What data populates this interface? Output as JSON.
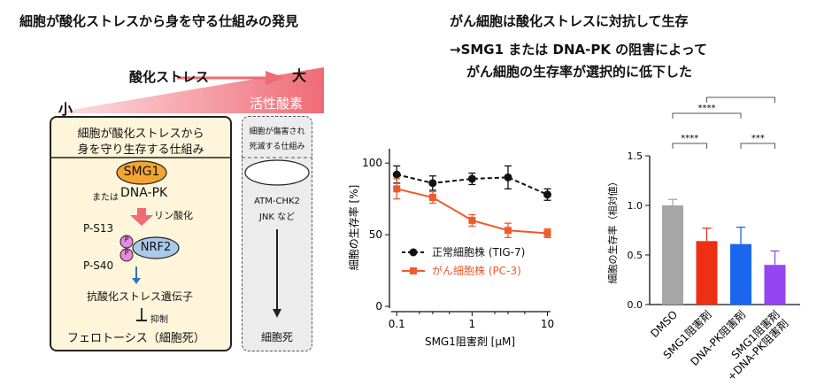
{
  "headers": {
    "left_title": "細胞が酸化ストレスから身を守る仕組みの発見",
    "right_title": "がん細胞は酸化ストレスに対抗して生存",
    "right_sub1": "→SMG1 または DNA-PK の阻害によって",
    "right_sub2": "がん細胞の生存率が選択的に低下した"
  },
  "gradient": {
    "label": "酸化ストレス",
    "small": "小",
    "large": "大",
    "ros": "活性酸素",
    "colors": {
      "light": "#fde4e4",
      "dark": "#ef6b76"
    }
  },
  "left_box": {
    "title_line1": "細胞が酸化ストレスから",
    "title_line2": "身を守り生存する仕組み",
    "smg1": "SMG1",
    "or_text": "または",
    "dnapk": "DNA-PK",
    "phospho": "リン酸化",
    "ps13": "P-S13",
    "ps40": "P-S40",
    "p_mark": "P",
    "nrf2": "NRF2",
    "gene": "抗酸化ストレス遺伝子",
    "inhibit": "抑制",
    "ferro": "フェロトーシス（細胞死）"
  },
  "right_box": {
    "title_line1": "細胞が傷害され",
    "title_line2": "死滅する仕組み",
    "oval_line1": "ATM-CHK2",
    "oval_line2": "JNK など",
    "death": "細胞死"
  },
  "chart_data": [
    {
      "type": "line",
      "xscale": "log",
      "xlabel": "SMG1阻害剤 [μM]",
      "ylabel": "細胞の生存率 [%]",
      "xticks": [
        "0.1",
        "1",
        "10"
      ],
      "yticks": [
        "0",
        "50",
        "100"
      ],
      "ylim": [
        0,
        110
      ],
      "x": [
        0.1,
        0.3,
        1,
        3,
        10
      ],
      "series": [
        {
          "name": "正常細胞株 (TIG-7)",
          "color": "#111111",
          "marker": "circle",
          "dashed": true,
          "values": [
            92,
            86,
            89,
            90,
            78
          ],
          "errors": [
            6,
            5,
            4,
            8,
            4
          ]
        },
        {
          "name": "がん細胞株 (PC-3)",
          "color": "#f0592b",
          "marker": "square",
          "dashed": false,
          "values": [
            82,
            76,
            60,
            53,
            51
          ],
          "errors": [
            7,
            4,
            4,
            5,
            3
          ]
        }
      ]
    },
    {
      "type": "bar",
      "ylabel": "細胞の生存率（相対値）",
      "yticks": [
        "0.0",
        "0.5",
        "1.0",
        "1.5"
      ],
      "ylim": [
        0,
        1.5
      ],
      "categories": [
        "DMSO",
        "SMG1阻害剤",
        "DNA-PK阻害剤",
        "SMG1阻害剤\n+DNA-PK阻害剤"
      ],
      "values": [
        1.0,
        0.64,
        0.61,
        0.4
      ],
      "errors": [
        0.06,
        0.13,
        0.17,
        0.14
      ],
      "colors": [
        "#a6a6a6",
        "#ef2f14",
        "#1a66ee",
        "#9546f2"
      ],
      "significance": [
        {
          "from": 0,
          "to": 1,
          "label": "****"
        },
        {
          "from": 2,
          "to": 3,
          "label": "***"
        },
        {
          "from": 0,
          "to": 2,
          "label": "****"
        },
        {
          "from": 1,
          "to": 3,
          "label": "****"
        },
        {
          "from": 0,
          "to": 3,
          "label": "****"
        }
      ]
    }
  ]
}
